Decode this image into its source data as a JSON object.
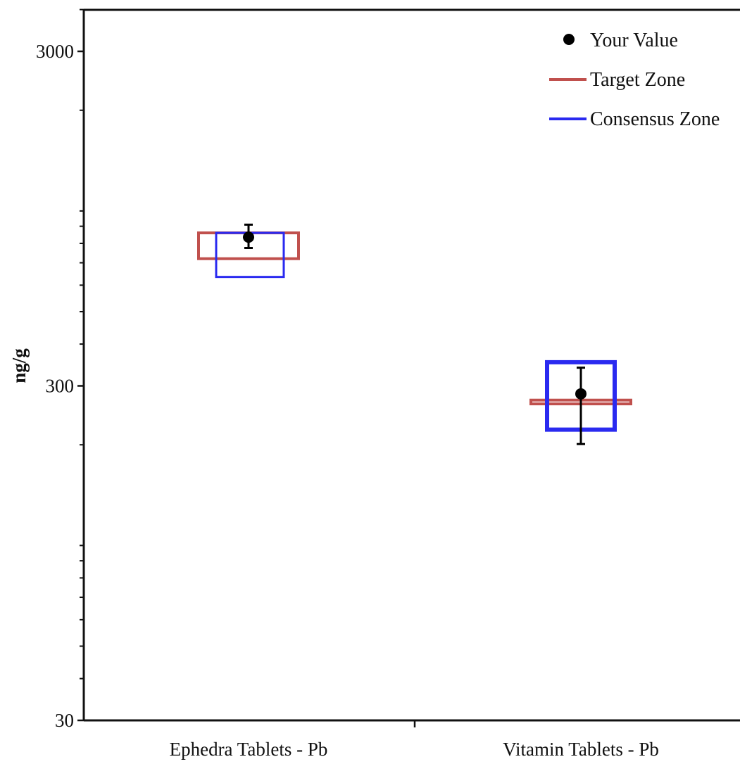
{
  "chart_data": {
    "type": "scatter",
    "ylabel": "ng/g",
    "yscale": "log",
    "ylim": [
      30,
      4000
    ],
    "yticks": [
      {
        "value": 3000,
        "label": "3000"
      },
      {
        "value": 300,
        "label": "300"
      },
      {
        "value": 30,
        "label": "30"
      }
    ],
    "categories": [
      "Ephedra Tablets - Pb",
      "Vitamin Tablets - Pb"
    ],
    "legend": {
      "position": "top-right",
      "entries": [
        {
          "key": "your_value",
          "label": "Your Value"
        },
        {
          "key": "target_zone",
          "label": "Target Zone"
        },
        {
          "key": "consensus_zone",
          "label": "Consensus Zone"
        }
      ]
    },
    "series": [
      {
        "name": "Your Value",
        "values": [
          {
            "category": "Ephedra Tablets - Pb",
            "y": 835,
            "err_low": 775,
            "err_high": 910
          },
          {
            "category": "Vitamin Tablets - Pb",
            "y": 284,
            "err_low": 201,
            "err_high": 340
          }
        ]
      },
      {
        "name": "Target Zone",
        "values": [
          {
            "category": "Ephedra Tablets - Pb",
            "low": 720,
            "high": 860
          },
          {
            "category": "Vitamin Tablets - Pb",
            "low": 265,
            "high": 272
          }
        ]
      },
      {
        "name": "Consensus Zone",
        "values": [
          {
            "category": "Ephedra Tablets - Pb",
            "low": 635,
            "high": 860
          },
          {
            "category": "Vitamin Tablets - Pb",
            "low": 222,
            "high": 353
          }
        ]
      }
    ],
    "colors": {
      "your_value": "#000000",
      "target_zone": "#c0504d",
      "consensus_zone": "#2a2af0"
    }
  }
}
